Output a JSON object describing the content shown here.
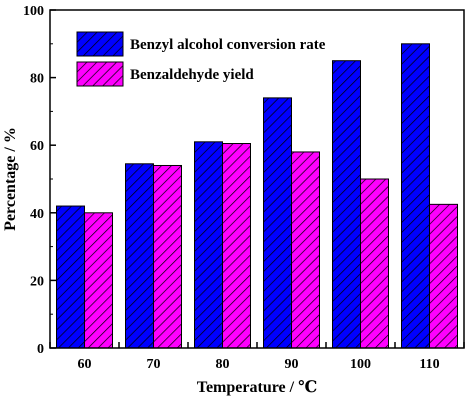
{
  "chart_data": {
    "type": "bar",
    "categories": [
      "60",
      "70",
      "80",
      "90",
      "100",
      "110"
    ],
    "series": [
      {
        "name": "Benzyl alcohol conversion rate",
        "values": [
          42,
          54.5,
          61,
          74,
          85,
          90
        ],
        "color": "#0000ff"
      },
      {
        "name": "Benzaldehyde yield",
        "values": [
          40,
          54,
          60.5,
          58,
          50,
          42.5
        ],
        "color": "#ff00ff"
      }
    ],
    "xlabel": "Temperature / ℃",
    "ylabel": "Percentage / %",
    "ylim": [
      0,
      100
    ],
    "yticks": [
      0,
      20,
      40,
      60,
      80,
      100
    ],
    "grid": false,
    "legend_position": "top-left",
    "bar_pattern": "diagonal-hatch"
  }
}
